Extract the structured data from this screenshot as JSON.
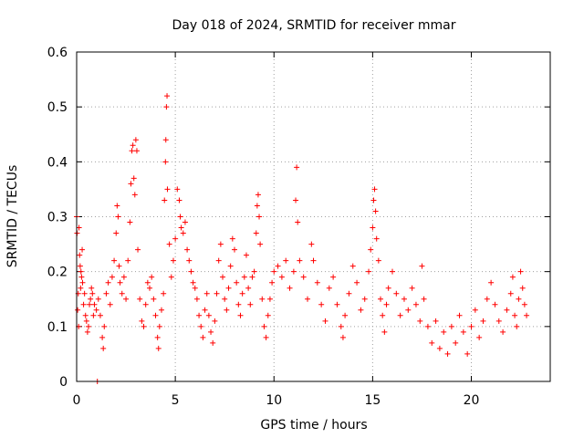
{
  "chart_data": {
    "type": "scatter",
    "title": "Day 018 of 2024, SRMTID for receiver mmar",
    "xlabel": "GPS time / hours",
    "ylabel": "SRMTID / TECUs",
    "xlim": [
      0,
      24
    ],
    "ylim": [
      0,
      0.6
    ],
    "xticks": [
      0,
      5,
      10,
      15,
      20
    ],
    "yticks": [
      0,
      0.1,
      0.2,
      0.3,
      0.4,
      0.5,
      0.6
    ],
    "xtick_labels": [
      "0",
      "5",
      "10",
      "15",
      "20"
    ],
    "ytick_labels": [
      "0",
      "0.1",
      "0.2",
      "0.3",
      "0.4",
      "0.5",
      "0.6"
    ],
    "grid": true,
    "marker": "+",
    "color": "#ff0000",
    "series": [
      {
        "name": "mmar",
        "points": [
          [
            0.0,
            0.3
          ],
          [
            0.02,
            0.27
          ],
          [
            0.05,
            0.13
          ],
          [
            0.08,
            0.16
          ],
          [
            0.1,
            0.1
          ],
          [
            0.12,
            0.28
          ],
          [
            0.15,
            0.23
          ],
          [
            0.18,
            0.21
          ],
          [
            0.2,
            0.17
          ],
          [
            0.22,
            0.2
          ],
          [
            0.25,
            0.19
          ],
          [
            0.28,
            0.24
          ],
          [
            0.3,
            0.18
          ],
          [
            0.35,
            0.14
          ],
          [
            0.4,
            0.16
          ],
          [
            0.45,
            0.12
          ],
          [
            0.5,
            0.11
          ],
          [
            0.55,
            0.09
          ],
          [
            0.6,
            0.1
          ],
          [
            0.65,
            0.14
          ],
          [
            0.7,
            0.15
          ],
          [
            0.75,
            0.17
          ],
          [
            0.8,
            0.16
          ],
          [
            0.85,
            0.12
          ],
          [
            0.9,
            0.14
          ],
          [
            1.0,
            0.13
          ],
          [
            1.05,
            0.0
          ],
          [
            1.1,
            0.15
          ],
          [
            1.2,
            0.12
          ],
          [
            1.3,
            0.08
          ],
          [
            1.35,
            0.06
          ],
          [
            1.4,
            0.1
          ],
          [
            1.5,
            0.16
          ],
          [
            1.6,
            0.18
          ],
          [
            1.7,
            0.14
          ],
          [
            1.8,
            0.19
          ],
          [
            1.9,
            0.22
          ],
          [
            2.0,
            0.27
          ],
          [
            2.05,
            0.32
          ],
          [
            2.1,
            0.3
          ],
          [
            2.15,
            0.21
          ],
          [
            2.2,
            0.18
          ],
          [
            2.3,
            0.16
          ],
          [
            2.4,
            0.19
          ],
          [
            2.5,
            0.15
          ],
          [
            2.6,
            0.22
          ],
          [
            2.7,
            0.29
          ],
          [
            2.75,
            0.36
          ],
          [
            2.8,
            0.42
          ],
          [
            2.85,
            0.43
          ],
          [
            2.9,
            0.37
          ],
          [
            2.95,
            0.34
          ],
          [
            3.0,
            0.44
          ],
          [
            3.05,
            0.42
          ],
          [
            3.1,
            0.24
          ],
          [
            3.2,
            0.15
          ],
          [
            3.3,
            0.11
          ],
          [
            3.4,
            0.1
          ],
          [
            3.5,
            0.14
          ],
          [
            3.6,
            0.18
          ],
          [
            3.7,
            0.17
          ],
          [
            3.8,
            0.19
          ],
          [
            3.9,
            0.15
          ],
          [
            4.0,
            0.12
          ],
          [
            4.1,
            0.08
          ],
          [
            4.15,
            0.06
          ],
          [
            4.2,
            0.1
          ],
          [
            4.3,
            0.13
          ],
          [
            4.4,
            0.16
          ],
          [
            4.45,
            0.33
          ],
          [
            4.5,
            0.4
          ],
          [
            4.52,
            0.44
          ],
          [
            4.55,
            0.5
          ],
          [
            4.58,
            0.52
          ],
          [
            4.6,
            0.35
          ],
          [
            4.7,
            0.25
          ],
          [
            4.8,
            0.19
          ],
          [
            4.9,
            0.22
          ],
          [
            5.0,
            0.26
          ],
          [
            5.1,
            0.35
          ],
          [
            5.2,
            0.33
          ],
          [
            5.25,
            0.3
          ],
          [
            5.3,
            0.28
          ],
          [
            5.4,
            0.27
          ],
          [
            5.5,
            0.29
          ],
          [
            5.6,
            0.24
          ],
          [
            5.7,
            0.22
          ],
          [
            5.8,
            0.2
          ],
          [
            5.9,
            0.18
          ],
          [
            6.0,
            0.17
          ],
          [
            6.1,
            0.15
          ],
          [
            6.2,
            0.12
          ],
          [
            6.3,
            0.1
          ],
          [
            6.4,
            0.08
          ],
          [
            6.5,
            0.13
          ],
          [
            6.6,
            0.16
          ],
          [
            6.7,
            0.12
          ],
          [
            6.8,
            0.09
          ],
          [
            6.9,
            0.07
          ],
          [
            7.0,
            0.11
          ],
          [
            7.1,
            0.16
          ],
          [
            7.2,
            0.22
          ],
          [
            7.3,
            0.25
          ],
          [
            7.4,
            0.19
          ],
          [
            7.5,
            0.15
          ],
          [
            7.6,
            0.13
          ],
          [
            7.7,
            0.17
          ],
          [
            7.8,
            0.21
          ],
          [
            7.9,
            0.26
          ],
          [
            8.0,
            0.24
          ],
          [
            8.1,
            0.18
          ],
          [
            8.2,
            0.14
          ],
          [
            8.3,
            0.12
          ],
          [
            8.4,
            0.16
          ],
          [
            8.5,
            0.19
          ],
          [
            8.6,
            0.23
          ],
          [
            8.7,
            0.17
          ],
          [
            8.8,
            0.14
          ],
          [
            8.9,
            0.19
          ],
          [
            9.0,
            0.2
          ],
          [
            9.1,
            0.27
          ],
          [
            9.15,
            0.32
          ],
          [
            9.2,
            0.34
          ],
          [
            9.25,
            0.3
          ],
          [
            9.3,
            0.25
          ],
          [
            9.4,
            0.15
          ],
          [
            9.5,
            0.1
          ],
          [
            9.6,
            0.08
          ],
          [
            9.7,
            0.12
          ],
          [
            9.8,
            0.15
          ],
          [
            9.9,
            0.18
          ],
          [
            10.0,
            0.2
          ],
          [
            10.2,
            0.21
          ],
          [
            10.4,
            0.19
          ],
          [
            10.6,
            0.22
          ],
          [
            10.8,
            0.17
          ],
          [
            11.0,
            0.2
          ],
          [
            11.1,
            0.33
          ],
          [
            11.15,
            0.39
          ],
          [
            11.2,
            0.29
          ],
          [
            11.3,
            0.22
          ],
          [
            11.5,
            0.19
          ],
          [
            11.7,
            0.15
          ],
          [
            11.9,
            0.25
          ],
          [
            12.0,
            0.22
          ],
          [
            12.2,
            0.18
          ],
          [
            12.4,
            0.14
          ],
          [
            12.6,
            0.11
          ],
          [
            12.8,
            0.17
          ],
          [
            13.0,
            0.19
          ],
          [
            13.2,
            0.14
          ],
          [
            13.4,
            0.1
          ],
          [
            13.5,
            0.08
          ],
          [
            13.6,
            0.12
          ],
          [
            13.8,
            0.16
          ],
          [
            14.0,
            0.21
          ],
          [
            14.2,
            0.18
          ],
          [
            14.4,
            0.13
          ],
          [
            14.6,
            0.15
          ],
          [
            14.8,
            0.2
          ],
          [
            14.9,
            0.24
          ],
          [
            15.0,
            0.28
          ],
          [
            15.05,
            0.33
          ],
          [
            15.1,
            0.35
          ],
          [
            15.15,
            0.31
          ],
          [
            15.2,
            0.26
          ],
          [
            15.3,
            0.22
          ],
          [
            15.4,
            0.15
          ],
          [
            15.5,
            0.12
          ],
          [
            15.6,
            0.09
          ],
          [
            15.7,
            0.14
          ],
          [
            15.8,
            0.17
          ],
          [
            16.0,
            0.2
          ],
          [
            16.2,
            0.16
          ],
          [
            16.4,
            0.12
          ],
          [
            16.6,
            0.15
          ],
          [
            16.8,
            0.13
          ],
          [
            17.0,
            0.17
          ],
          [
            17.2,
            0.14
          ],
          [
            17.4,
            0.11
          ],
          [
            17.5,
            0.21
          ],
          [
            17.6,
            0.15
          ],
          [
            17.8,
            0.1
          ],
          [
            18.0,
            0.07
          ],
          [
            18.2,
            0.11
          ],
          [
            18.4,
            0.06
          ],
          [
            18.6,
            0.09
          ],
          [
            18.8,
            0.05
          ],
          [
            19.0,
            0.1
          ],
          [
            19.2,
            0.07
          ],
          [
            19.4,
            0.12
          ],
          [
            19.6,
            0.09
          ],
          [
            19.8,
            0.05
          ],
          [
            20.0,
            0.1
          ],
          [
            20.2,
            0.13
          ],
          [
            20.4,
            0.08
          ],
          [
            20.6,
            0.11
          ],
          [
            20.8,
            0.15
          ],
          [
            21.0,
            0.18
          ],
          [
            21.2,
            0.14
          ],
          [
            21.4,
            0.11
          ],
          [
            21.6,
            0.09
          ],
          [
            21.8,
            0.13
          ],
          [
            22.0,
            0.16
          ],
          [
            22.1,
            0.19
          ],
          [
            22.2,
            0.12
          ],
          [
            22.3,
            0.1
          ],
          [
            22.4,
            0.15
          ],
          [
            22.5,
            0.2
          ],
          [
            22.6,
            0.17
          ],
          [
            22.7,
            0.14
          ],
          [
            22.8,
            0.12
          ]
        ]
      }
    ]
  }
}
